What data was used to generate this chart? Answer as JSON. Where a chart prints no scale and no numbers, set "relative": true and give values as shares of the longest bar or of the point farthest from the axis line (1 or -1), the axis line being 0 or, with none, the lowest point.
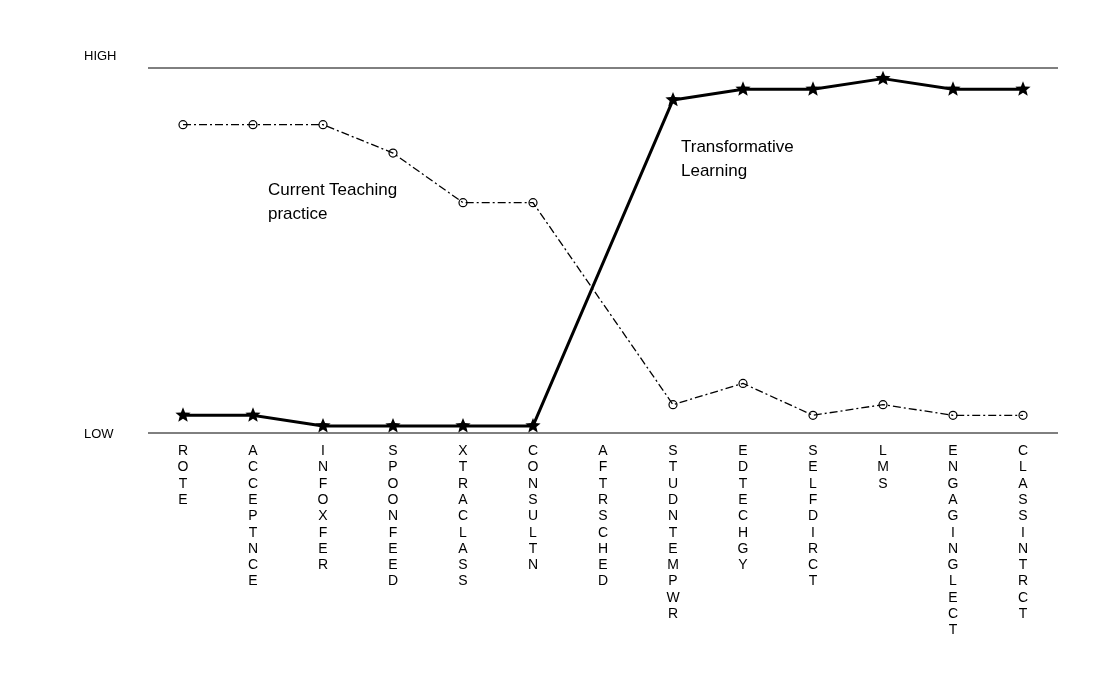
{
  "chart_data": {
    "type": "line",
    "relative": true,
    "categories": [
      "ROTE",
      "ACCEPTNCE",
      "INFOXFER",
      "SPOONFEED",
      "XTRACLASS",
      "CONSULTN",
      "AFTRSCHED",
      "STUDNTEMPWR",
      "EDTECHGY",
      "SELFDIRCT",
      "LMS",
      "ENGAGINGLECT",
      "CLASSINTRCT"
    ],
    "series": [
      {
        "name": "Current Teaching practice",
        "color": "#000000",
        "marker": "circle",
        "line_style": "dashed",
        "values": [
          0.87,
          0.87,
          0.87,
          0.79,
          0.65,
          0.65,
          null,
          0.08,
          0.14,
          0.05,
          0.08,
          0.05,
          0.05
        ]
      },
      {
        "name": "Transformative Learning",
        "color": "#000000",
        "marker": "star",
        "line_style": "solid",
        "values": [
          0.05,
          0.05,
          0.02,
          0.02,
          0.02,
          0.02,
          null,
          0.94,
          0.97,
          0.97,
          1,
          0.97,
          0.97
        ]
      }
    ],
    "ref_lines": [
      {
        "axis": "y",
        "value": 1.03,
        "label": "HIGH"
      }
    ],
    "annotations": [
      "LOW"
    ],
    "grid": false,
    "legend": false
  }
}
